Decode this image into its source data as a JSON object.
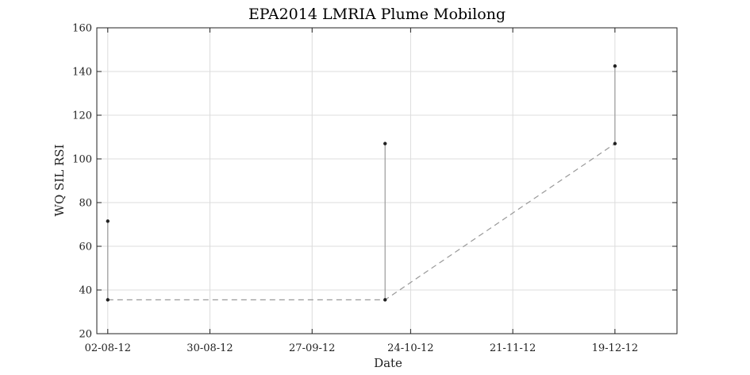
{
  "chart_data": {
    "type": "line",
    "title": "EPA2014 LMRIA Plume Mobilong",
    "xlabel": "Date",
    "ylabel": "WQ SIL RSI",
    "ylim": [
      20,
      160
    ],
    "yticks": [
      20,
      40,
      60,
      80,
      100,
      120,
      140,
      160
    ],
    "xlim": [
      "2012-07-30",
      "2013-01-05"
    ],
    "xticks": [
      {
        "date": "2012-08-02",
        "label": "02-08-12"
      },
      {
        "date": "2012-08-30",
        "label": "30-08-12"
      },
      {
        "date": "2012-09-27",
        "label": "27-09-12"
      },
      {
        "date": "2012-10-24",
        "label": "24-10-12"
      },
      {
        "date": "2012-11-21",
        "label": "21-11-12"
      },
      {
        "date": "2012-12-19",
        "label": "19-12-12"
      }
    ],
    "grid": true,
    "series": [
      {
        "style": "range-bars",
        "color": "#999999",
        "points": [
          {
            "date": "2012-08-02",
            "min": 35.5,
            "max": 71.5
          },
          {
            "date": "2012-10-17",
            "min": 35.5,
            "max": 107
          },
          {
            "date": "2012-12-19",
            "min": 107,
            "max": 142.5
          }
        ]
      },
      {
        "style": "dashed-line",
        "color": "#999999",
        "points": [
          {
            "date": "2012-08-02",
            "value": 35.5
          },
          {
            "date": "2012-10-17",
            "value": 35.5
          },
          {
            "date": "2012-12-19",
            "value": 107
          }
        ]
      },
      {
        "style": "markers",
        "color": "#222222",
        "points": [
          {
            "date": "2012-08-02",
            "value": 71.5
          },
          {
            "date": "2012-08-02",
            "value": 35.5
          },
          {
            "date": "2012-10-17",
            "value": 107
          },
          {
            "date": "2012-10-17",
            "value": 35.5
          },
          {
            "date": "2012-12-19",
            "value": 107
          },
          {
            "date": "2012-12-19",
            "value": 142.5
          }
        ]
      }
    ]
  }
}
